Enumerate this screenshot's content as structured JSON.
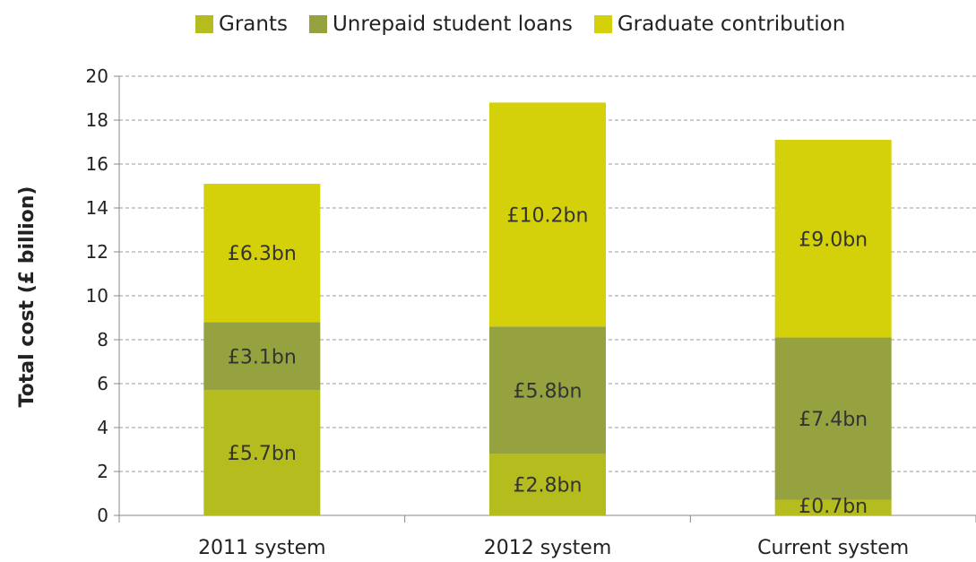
{
  "chart_data": {
    "type": "bar",
    "stacked": true,
    "categories": [
      "2011 system",
      "2012 system",
      "Current system"
    ],
    "series": [
      {
        "name": "Grants",
        "color": "#b5bd1e",
        "values": [
          5.7,
          2.8,
          0.7
        ],
        "labels": [
          "£5.7bn",
          "£2.8bn",
          "£0.7bn"
        ]
      },
      {
        "name": "Unrepaid student loans",
        "color": "#96a23f",
        "values": [
          3.1,
          5.8,
          7.4
        ],
        "labels": [
          "£3.1bn",
          "£5.8bn",
          "£7.4bn"
        ]
      },
      {
        "name": "Graduate contribution",
        "color": "#d4d00a",
        "values": [
          6.3,
          10.2,
          9.0
        ],
        "labels": [
          "£6.3bn",
          "£10.2bn",
          "£9.0bn"
        ]
      }
    ],
    "ylabel": "Total cost (£ billion)",
    "xlabel": "",
    "ylim": [
      0,
      20
    ],
    "yticks": [
      0,
      2,
      4,
      6,
      8,
      10,
      12,
      14,
      16,
      18,
      20
    ],
    "grid": true,
    "legend_position": "top"
  }
}
